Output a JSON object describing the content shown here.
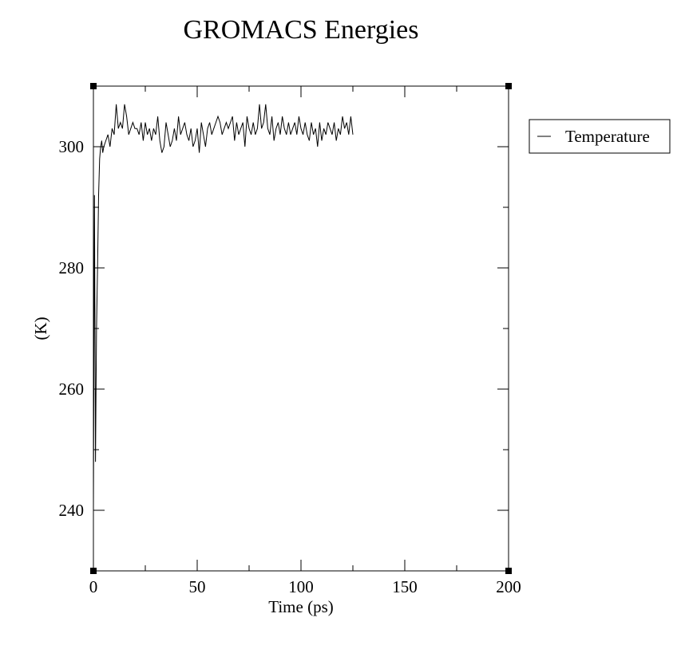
{
  "chart_data": {
    "type": "line",
    "title": "GROMACS Energies",
    "xlabel": "Time (ps)",
    "ylabel": "(K)",
    "xlim": [
      0,
      200
    ],
    "ylim": [
      230,
      310
    ],
    "x_ticks": [
      0,
      50,
      100,
      150,
      200
    ],
    "x_tick_labels": [
      "0",
      "50",
      "100",
      "150",
      "200"
    ],
    "y_ticks": [
      240,
      260,
      280,
      300
    ],
    "y_tick_labels": [
      "240",
      "260",
      "280",
      "300"
    ],
    "grid": false,
    "legend_position": "outside-right-top",
    "series": [
      {
        "name": "Temperature",
        "color": "#000000",
        "x": [
          0,
          0.5,
          1,
          1.5,
          2,
          2.5,
          3,
          3.5,
          4,
          4.5,
          5,
          6,
          7,
          8,
          9,
          10,
          11,
          12,
          13,
          14,
          15,
          16,
          17,
          18,
          19,
          20,
          21,
          22,
          23,
          24,
          25,
          26,
          27,
          28,
          29,
          30,
          31,
          32,
          33,
          34,
          35,
          36,
          37,
          38,
          39,
          40,
          41,
          42,
          43,
          44,
          45,
          46,
          47,
          48,
          49,
          50,
          51,
          52,
          53,
          54,
          55,
          56,
          57,
          58,
          59,
          60,
          61,
          62,
          63,
          64,
          65,
          66,
          67,
          68,
          69,
          70,
          71,
          72,
          73,
          74,
          75,
          76,
          77,
          78,
          79,
          80,
          81,
          82,
          83,
          84,
          85,
          86,
          87,
          88,
          89,
          90,
          91,
          92,
          93,
          94,
          95,
          96,
          97,
          98,
          99,
          100,
          101,
          102,
          103,
          104,
          105,
          106,
          107,
          108,
          109,
          110,
          111,
          112,
          113,
          114,
          115,
          116,
          117,
          118,
          119,
          120,
          121,
          122,
          123,
          124,
          125
        ],
        "values": [
          240,
          292,
          248,
          270,
          280,
          292,
          298,
          300,
          301,
          299,
          300,
          301,
          302,
          300,
          303,
          302,
          307,
          303,
          304,
          303,
          307,
          305,
          302,
          303,
          304,
          303,
          303,
          302,
          304,
          301,
          304,
          302,
          303,
          301,
          303,
          302,
          305,
          301,
          299,
          300,
          304,
          302,
          300,
          301,
          303,
          301,
          305,
          302,
          303,
          304,
          302,
          301,
          303,
          300,
          301,
          303,
          299,
          304,
          302,
          300,
          303,
          304,
          302,
          303,
          304,
          305,
          304,
          302,
          303,
          304,
          303,
          304,
          305,
          301,
          304,
          302,
          303,
          304,
          300,
          305,
          303,
          302,
          304,
          302,
          303,
          307,
          303,
          304,
          307,
          303,
          302,
          305,
          301,
          303,
          304,
          302,
          305,
          303,
          302,
          304,
          302,
          303,
          304,
          302,
          305,
          303,
          302,
          304,
          302,
          301,
          304,
          302,
          303,
          300,
          304,
          301,
          303,
          302,
          304,
          303,
          302,
          304,
          301,
          303,
          302,
          305,
          303,
          304,
          302,
          305,
          302
        ]
      }
    ]
  }
}
